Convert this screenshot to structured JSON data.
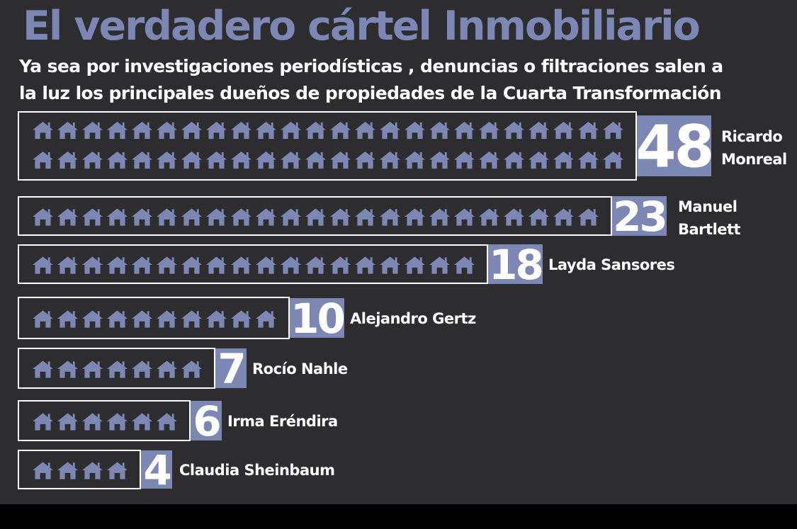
{
  "chart_data": {
    "type": "bar",
    "title": "El verdadero cártel Inmobiliario",
    "subtitle_line1": "Ya sea por investigaciones periodísticas , denuncias o filtraciones salen a",
    "subtitle_line2": "la luz los principales dueños de propiedades de la Cuarta Transformación",
    "categories": [
      [
        "Ricardo",
        "Monreal"
      ],
      [
        "Manuel",
        "Bartlett"
      ],
      [
        "Layda Sansores"
      ],
      [
        "Alejandro Gertz"
      ],
      [
        "Rocío Nahle"
      ],
      [
        "Irma Eréndira"
      ],
      [
        "Claudia Sheinbaum"
      ]
    ],
    "values": [
      48,
      23,
      18,
      10,
      7,
      6,
      4
    ],
    "value_labels": [
      "48",
      "23",
      "18",
      "10",
      "7",
      "6",
      "4"
    ],
    "mark_icon": "house-icon"
  },
  "colors": {
    "background": "#2d2d2f",
    "title": "#7c87b3",
    "badge": "#7c87b3",
    "house": "#7c87b3",
    "frame": "#ffffff",
    "text": "#ffffff"
  }
}
